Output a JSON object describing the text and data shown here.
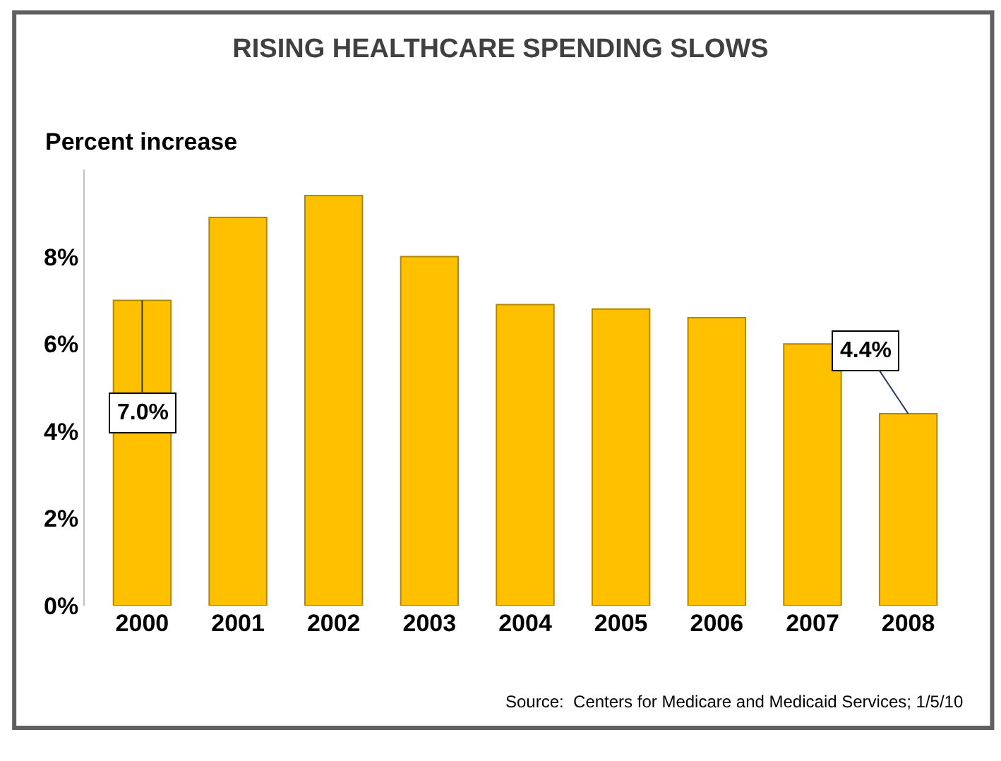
{
  "chart_data": {
    "type": "bar",
    "title": "RISING HEALTHCARE SPENDING SLOWS",
    "ylabel": "Percent increase",
    "categories": [
      "2000",
      "2001",
      "2002",
      "2003",
      "2004",
      "2005",
      "2006",
      "2007",
      "2008"
    ],
    "values": [
      7.0,
      8.9,
      9.4,
      8.0,
      6.9,
      6.8,
      6.6,
      6.0,
      4.4
    ],
    "color": "#ffc000",
    "ylim": [
      0,
      10
    ],
    "yticks": [
      {
        "value": 0,
        "label": "0%"
      },
      {
        "value": 2,
        "label": "2%"
      },
      {
        "value": 4,
        "label": "4%"
      },
      {
        "value": 6,
        "label": "6%"
      },
      {
        "value": 8,
        "label": "8%"
      }
    ],
    "annotations": [
      {
        "text": "7.0%",
        "x": "2000",
        "y": 7.0
      },
      {
        "text": "4.4%",
        "x": "2008",
        "y": 4.4
      },
      "Source:  Centers for Medicare and Medicaid Services; 1/5/10"
    ]
  }
}
